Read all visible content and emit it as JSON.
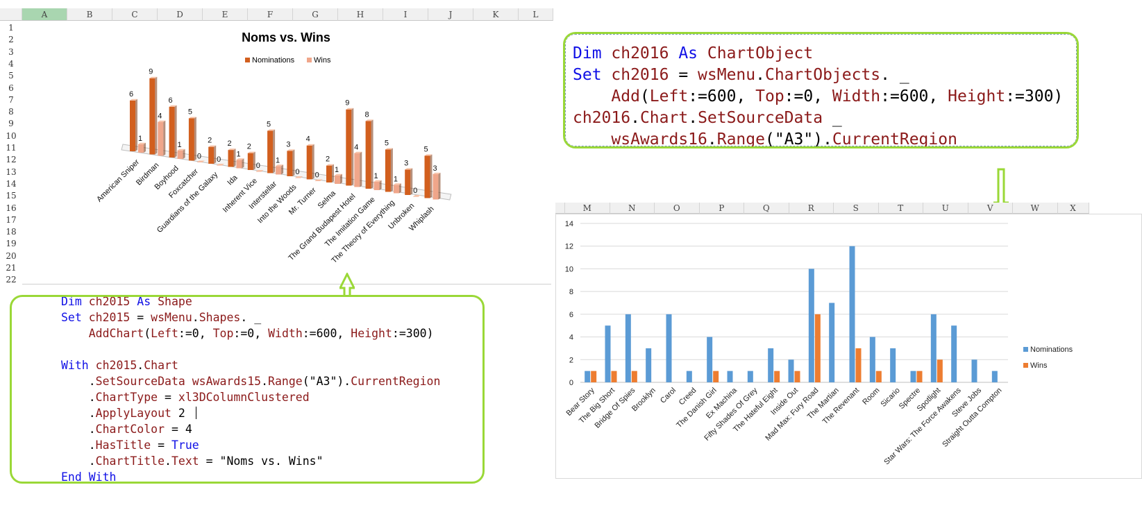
{
  "sheet1": {
    "columns": [
      "A",
      "B",
      "C",
      "D",
      "E",
      "F",
      "G",
      "H",
      "I",
      "J",
      "K",
      "L"
    ],
    "rows": [
      "1",
      "2",
      "3",
      "4",
      "5",
      "6",
      "7",
      "8",
      "9",
      "10",
      "11",
      "12",
      "13",
      "14",
      "15",
      "16",
      "17",
      "18",
      "19",
      "20",
      "21",
      "22"
    ],
    "selected_column": "A"
  },
  "chart1": {
    "title": "Noms vs. Wins",
    "legend": [
      "Nominations",
      "Wins"
    ],
    "colors": {
      "nominations": "#d25f1e",
      "wins": "#f0a68a"
    }
  },
  "chart_data": [
    {
      "type": "bar",
      "subtype": "3d-clustered-column",
      "title": "Noms vs. Wins",
      "legend_position": "top",
      "categories": [
        "American Sniper",
        "Birdman",
        "Boyhood",
        "Foxcatcher",
        "Guardians of the Galaxy",
        "Ida",
        "Inherent Vice",
        "Interstellar",
        "Into the Woods",
        "Mr. Turner",
        "Selma",
        "The Grand Budapest Hotel",
        "The Imitation Game",
        "The Theory of Everything",
        "Unbroken",
        "Whiplash"
      ],
      "series": [
        {
          "name": "Nominations",
          "values": [
            6,
            9,
            6,
            5,
            2,
            2,
            2,
            5,
            3,
            4,
            2,
            9,
            8,
            5,
            3,
            5
          ]
        },
        {
          "name": "Wins",
          "values": [
            1,
            4,
            1,
            0,
            0,
            1,
            0,
            1,
            0,
            0,
            1,
            4,
            1,
            1,
            0,
            3
          ]
        }
      ]
    },
    {
      "type": "bar",
      "categories": [
        "Bear Story",
        "The Big Short",
        "Bridge Of Spies",
        "Brooklyn",
        "Carol",
        "Creed",
        "The Danish Girl",
        "Ex Machina",
        "Fifty Shades Of Grey",
        "The Hateful Eight",
        "Inside Out",
        "Mad Max: Fury Road",
        "The Martian",
        "The Revenant",
        "Room",
        "Sicario",
        "Spectre",
        "Spotlight",
        "Star Wars: The Force Awakens",
        "Steve Jobs",
        "Straight Outta Compton"
      ],
      "series": [
        {
          "name": "Nominations",
          "values": [
            1,
            5,
            6,
            3,
            6,
            1,
            4,
            1,
            1,
            3,
            2,
            10,
            7,
            12,
            4,
            3,
            1,
            6,
            5,
            2,
            1
          ]
        },
        {
          "name": "Wins",
          "values": [
            1,
            1,
            1,
            0,
            0,
            0,
            1,
            0,
            0,
            1,
            1,
            6,
            0,
            3,
            1,
            0,
            1,
            2,
            0,
            0,
            0
          ]
        }
      ],
      "ylim": [
        0,
        14
      ],
      "yticks": [
        0,
        2,
        4,
        6,
        8,
        10,
        12,
        14
      ],
      "grid": true,
      "legend_position": "right",
      "colors": {
        "nominations": "#5b9bd5",
        "wins": "#ed7d31"
      }
    }
  ],
  "code2015": {
    "lines": [
      [
        {
          "t": "Dim ",
          "c": "kw"
        },
        {
          "t": "ch2015 ",
          "c": "id"
        },
        {
          "t": "As ",
          "c": "kw"
        },
        {
          "t": "Shape",
          "c": "id"
        }
      ],
      [
        {
          "t": "Set ",
          "c": "kw"
        },
        {
          "t": "ch2015",
          "c": "id"
        },
        {
          "t": " = ",
          "c": ""
        },
        {
          "t": "wsMenu",
          "c": "id"
        },
        {
          "t": ".",
          "c": ""
        },
        {
          "t": "Shapes",
          "c": "id"
        },
        {
          "t": ". _",
          "c": ""
        }
      ],
      [
        {
          "t": "    ",
          "c": ""
        },
        {
          "t": "AddChart",
          "c": "id"
        },
        {
          "t": "(",
          "c": ""
        },
        {
          "t": "Left",
          "c": "id"
        },
        {
          "t": ":=0, ",
          "c": ""
        },
        {
          "t": "Top",
          "c": "id"
        },
        {
          "t": ":=0, ",
          "c": ""
        },
        {
          "t": "Width",
          "c": "id"
        },
        {
          "t": ":=600, ",
          "c": ""
        },
        {
          "t": "Height",
          "c": "id"
        },
        {
          "t": ":=300)",
          "c": ""
        }
      ],
      [],
      [
        {
          "t": "With ",
          "c": "kw"
        },
        {
          "t": "ch2015",
          "c": "id"
        },
        {
          "t": ".",
          "c": ""
        },
        {
          "t": "Chart",
          "c": "id"
        }
      ],
      [
        {
          "t": "    .",
          "c": ""
        },
        {
          "t": "SetSourceData ",
          "c": "id"
        },
        {
          "t": "wsAwards15",
          "c": "id"
        },
        {
          "t": ".",
          "c": ""
        },
        {
          "t": "Range",
          "c": "id"
        },
        {
          "t": "(\"A3\").",
          "c": ""
        },
        {
          "t": "CurrentRegion",
          "c": "id"
        }
      ],
      [
        {
          "t": "    .",
          "c": ""
        },
        {
          "t": "ChartType",
          "c": "id"
        },
        {
          "t": " = ",
          "c": ""
        },
        {
          "t": "xl3DColumnClustered",
          "c": "id"
        }
      ],
      [
        {
          "t": "    .",
          "c": ""
        },
        {
          "t": "ApplyLayout ",
          "c": "id"
        },
        {
          "t": "2",
          "c": ""
        }
      ],
      [
        {
          "t": "    .",
          "c": ""
        },
        {
          "t": "ChartColor",
          "c": "id"
        },
        {
          "t": " = 4",
          "c": ""
        }
      ],
      [
        {
          "t": "    .",
          "c": ""
        },
        {
          "t": "HasTitle",
          "c": "id"
        },
        {
          "t": " = ",
          "c": ""
        },
        {
          "t": "True",
          "c": "kw"
        }
      ],
      [
        {
          "t": "    .",
          "c": ""
        },
        {
          "t": "ChartTitle",
          "c": "id"
        },
        {
          "t": ".",
          "c": ""
        },
        {
          "t": "Text",
          "c": "id"
        },
        {
          "t": " = \"Noms vs. Wins\"",
          "c": ""
        }
      ],
      [
        {
          "t": "End With",
          "c": "kw"
        }
      ]
    ]
  },
  "code2016": {
    "lines": [
      [
        {
          "t": "Dim ",
          "c": "kw"
        },
        {
          "t": "ch2016 ",
          "c": "id"
        },
        {
          "t": "As ",
          "c": "kw"
        },
        {
          "t": "ChartObject",
          "c": "id"
        }
      ],
      [
        {
          "t": "Set ",
          "c": "kw"
        },
        {
          "t": "ch2016",
          "c": "id"
        },
        {
          "t": " = ",
          "c": ""
        },
        {
          "t": "wsMenu",
          "c": "id"
        },
        {
          "t": ".",
          "c": ""
        },
        {
          "t": "ChartObjects",
          "c": "id"
        },
        {
          "t": ". _",
          "c": ""
        }
      ],
      [
        {
          "t": "    ",
          "c": ""
        },
        {
          "t": "Add",
          "c": "id"
        },
        {
          "t": "(",
          "c": ""
        },
        {
          "t": "Left",
          "c": "id"
        },
        {
          "t": ":=600, ",
          "c": ""
        },
        {
          "t": "Top",
          "c": "id"
        },
        {
          "t": ":=0, ",
          "c": ""
        },
        {
          "t": "Width",
          "c": "id"
        },
        {
          "t": ":=600, ",
          "c": ""
        },
        {
          "t": "Height",
          "c": "id"
        },
        {
          "t": ":=300)",
          "c": ""
        }
      ],
      [
        {
          "t": "ch2016",
          "c": "id"
        },
        {
          "t": ".",
          "c": ""
        },
        {
          "t": "Chart",
          "c": "id"
        },
        {
          "t": ".",
          "c": ""
        },
        {
          "t": "SetSourceData",
          "c": "id"
        },
        {
          "t": " _",
          "c": ""
        }
      ],
      [
        {
          "t": "    ",
          "c": ""
        },
        {
          "t": "wsAwards16",
          "c": "id"
        },
        {
          "t": ".",
          "c": ""
        },
        {
          "t": "Range",
          "c": "id"
        },
        {
          "t": "(\"A3\").",
          "c": ""
        },
        {
          "t": "CurrentRegion",
          "c": "id"
        }
      ]
    ]
  },
  "sheet2": {
    "columns": [
      "M",
      "N",
      "O",
      "P",
      "Q",
      "R",
      "S",
      "T",
      "U",
      "V",
      "W",
      "X"
    ]
  }
}
